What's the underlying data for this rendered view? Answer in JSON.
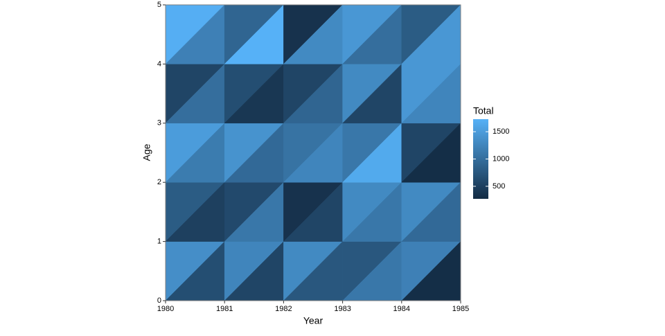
{
  "chart_data": {
    "type": "lexis",
    "x_label": "Year",
    "y_label": "Age",
    "x": [
      1980,
      1981,
      1982,
      1983,
      1984
    ],
    "y": [
      0,
      1,
      2,
      3,
      4
    ],
    "upper": [
      [
        1350,
        1250,
        1300,
        750,
        1200
      ],
      [
        800,
        600,
        350,
        1300,
        1300
      ],
      [
        1500,
        1400,
        1050,
        1100,
        550
      ],
      [
        550,
        650,
        550,
        1300,
        1450
      ],
      [
        1700,
        900,
        350,
        1450,
        800
      ]
    ],
    "lower": [
      [
        650,
        550,
        750,
        1100,
        300
      ],
      [
        500,
        1100,
        550,
        1100,
        950
      ],
      [
        1150,
        950,
        1250,
        1650,
        300
      ],
      [
        1000,
        400,
        900,
        550,
        1250
      ],
      [
        1200,
        1730,
        1300,
        1000,
        1450
      ]
    ],
    "xlim": [
      1980,
      1985
    ],
    "xticks": [
      1980,
      1981,
      1982,
      1983,
      1984,
      1985
    ],
    "ylim": [
      0,
      5
    ],
    "yticks": [
      0,
      1,
      2,
      3,
      4,
      5
    ],
    "colorbar": {
      "title": "Total",
      "lim": [
        270,
        1730
      ],
      "ticks": [
        500,
        1000,
        1500
      ],
      "low": "#132B43",
      "high": "#56B1F7"
    }
  }
}
